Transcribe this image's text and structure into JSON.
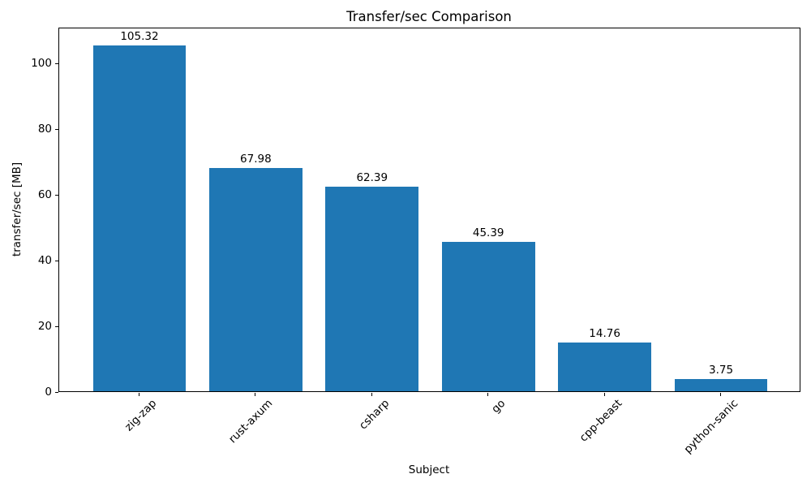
{
  "chart_data": {
    "type": "bar",
    "title": "Transfer/sec Comparison",
    "xlabel": "Subject",
    "ylabel": "transfer/sec [MB]",
    "categories": [
      "zig-zap",
      "rust-axum",
      "csharp",
      "go",
      "cpp-beast",
      "python-sanic"
    ],
    "values": [
      105.32,
      67.98,
      62.39,
      45.39,
      14.76,
      3.75
    ],
    "value_labels": [
      "105.32",
      "67.98",
      "62.39",
      "45.39",
      "14.76",
      "3.75"
    ],
    "yticks": [
      0,
      20,
      40,
      60,
      80,
      100
    ],
    "ylim": [
      0,
      111
    ],
    "bar_color": "#1f77b4",
    "axis_color": "#000000",
    "text_color": "#000000",
    "grid": false,
    "legend": null,
    "x_tick_rotation_deg": 45
  }
}
